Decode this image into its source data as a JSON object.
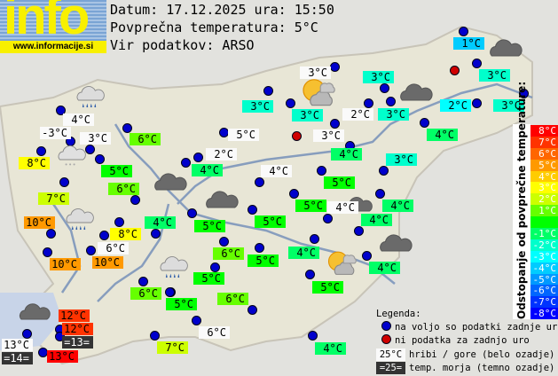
{
  "logo": {
    "text": "info",
    "url": "www.informacije.si"
  },
  "header": {
    "date_line": "Datum: 17.12.2025 ura: 15:50",
    "avg_line": "Povprečna temperatura: 5°C",
    "source_line": "Vir podatkov: ARSO"
  },
  "average_temperature": 5,
  "stations": [
    {
      "t": "4°C",
      "k": "m"
    },
    {
      "t": "-3°C",
      "k": "m"
    },
    {
      "t": "3°C",
      "k": "m"
    },
    {
      "t": "6°C",
      "k": "n"
    },
    {
      "t": "8°C",
      "k": "n"
    },
    {
      "t": "5°C",
      "k": "n"
    },
    {
      "t": "2°C",
      "k": "m"
    },
    {
      "t": "4°C",
      "k": "n"
    },
    {
      "t": "5°C",
      "k": "m"
    },
    {
      "t": "3°C",
      "k": "m"
    },
    {
      "t": "3°C",
      "k": "n"
    },
    {
      "t": "3°C",
      "k": "n"
    },
    {
      "t": "2°C",
      "k": "m"
    },
    {
      "t": "3°C",
      "k": "m"
    },
    {
      "t": "4°C",
      "k": "n"
    },
    {
      "t": "4°C",
      "k": "m"
    },
    {
      "t": "1°C",
      "k": "n"
    },
    {
      "t": "3°C",
      "k": "n"
    },
    {
      "t": "3°C",
      "k": "n"
    },
    {
      "t": "2°C",
      "k": "n"
    },
    {
      "t": "3°C",
      "k": "n"
    },
    {
      "t": "3°C",
      "k": "n"
    },
    {
      "t": "4°C",
      "k": "n"
    },
    {
      "t": "3°C",
      "k": "n"
    },
    {
      "t": "5°C",
      "k": "n"
    },
    {
      "t": "5°C",
      "k": "n"
    },
    {
      "t": "4°C",
      "k": "m"
    },
    {
      "t": "4°C",
      "k": "n"
    },
    {
      "t": "4°C",
      "k": "n"
    },
    {
      "t": "5°C",
      "k": "n"
    },
    {
      "t": "5°C",
      "k": "n"
    },
    {
      "t": "4°C",
      "k": "n"
    },
    {
      "t": "6°C",
      "k": "n"
    },
    {
      "t": "5°C",
      "k": "n"
    },
    {
      "t": "4°C",
      "k": "n"
    },
    {
      "t": "4°C",
      "k": "n"
    },
    {
      "t": "5°C",
      "k": "n"
    },
    {
      "t": "5°C",
      "k": "n"
    },
    {
      "t": "7°C",
      "k": "n"
    },
    {
      "t": "6°C",
      "k": "n"
    },
    {
      "t": "10°C",
      "k": "n"
    },
    {
      "t": "8°C",
      "k": "n"
    },
    {
      "t": "6°C",
      "k": "m"
    },
    {
      "t": "10°C",
      "k": "n"
    },
    {
      "t": "10°C",
      "k": "n"
    },
    {
      "t": "6°C",
      "k": "n"
    },
    {
      "t": "5°C",
      "k": "n"
    },
    {
      "t": "6°C",
      "k": "n"
    },
    {
      "t": "12°C",
      "k": "n"
    },
    {
      "t": "12°C",
      "k": "n"
    },
    {
      "t": "=13=",
      "k": "s"
    },
    {
      "t": "13°C",
      "k": "m"
    },
    {
      "t": "=14=",
      "k": "s"
    },
    {
      "t": "13°C",
      "k": "n"
    },
    {
      "t": "7°C",
      "k": "n"
    },
    {
      "t": "6°C",
      "k": "m"
    },
    {
      "t": "4°C",
      "k": "n"
    }
  ],
  "weather_icons": [
    "rain",
    "snow",
    "sun-cloud",
    "overcast",
    "overcast",
    "overcast",
    "overcast",
    "rain",
    "rain",
    "sun-cloud",
    "overcast",
    "overcast",
    "overcast"
  ],
  "scale": {
    "title": "Odstopanje od povprečne temperature:",
    "steps": [
      {
        "label": "8°C",
        "color": "#ff0000"
      },
      {
        "label": "7°C",
        "color": "#ff3300"
      },
      {
        "label": "6°C",
        "color": "#ff6600"
      },
      {
        "label": "5°C",
        "color": "#ff9900"
      },
      {
        "label": "4°C",
        "color": "#ffcc00"
      },
      {
        "label": "3°C",
        "color": "#ffff00"
      },
      {
        "label": "2°C",
        "color": "#ccff00"
      },
      {
        "label": "1°C",
        "color": "#66ff00"
      },
      {
        "label": "",
        "color": "#00ff00"
      },
      {
        "label": "-1°C",
        "color": "#00ff66"
      },
      {
        "label": "-2°C",
        "color": "#00ffcc"
      },
      {
        "label": "-3°C",
        "color": "#00ffff"
      },
      {
        "label": "-4°C",
        "color": "#00ccff"
      },
      {
        "label": "-5°C",
        "color": "#0099ff"
      },
      {
        "label": "-6°C",
        "color": "#0066ff"
      },
      {
        "label": "-7°C",
        "color": "#0033ff"
      },
      {
        "label": "-8°C",
        "color": "#0000ff"
      }
    ]
  },
  "legend": {
    "title": "Legenda:",
    "blue_dot": "na voljo so podatki zadnje ure",
    "red_dot": "ni podatka za zadnjo uro",
    "mountain_sample": "25°C",
    "mountain_text": "hribi / gore (belo ozadje)",
    "sea_sample": "=25=",
    "sea_text": "temp. morja (temno ozadje)"
  }
}
